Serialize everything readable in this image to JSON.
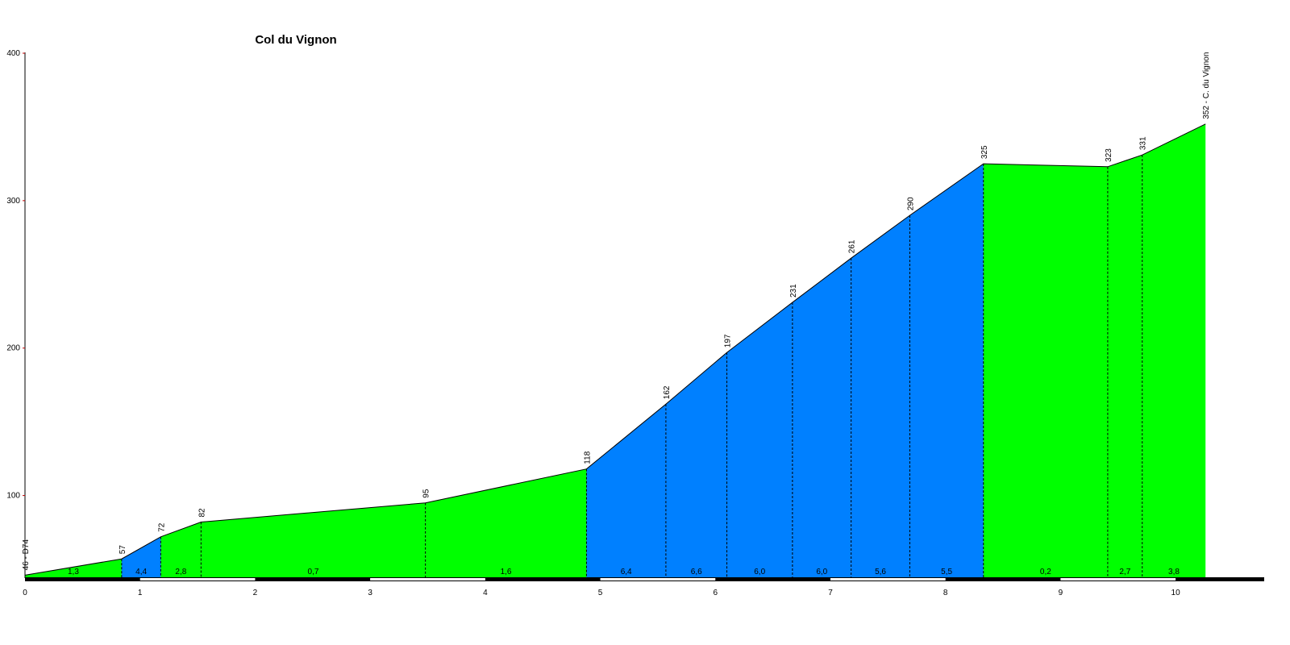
{
  "chart_data": {
    "type": "profile",
    "title": "Col du Vignon",
    "x": [
      0,
      0.84,
      1.18,
      1.53,
      3.48,
      4.88,
      5.57,
      6.1,
      6.67,
      7.18,
      7.69,
      8.33,
      9.41,
      9.71,
      10.26
    ],
    "values": [
      46,
      57,
      72,
      82,
      95,
      118,
      162,
      197,
      231,
      261,
      290,
      325,
      323,
      331,
      352
    ],
    "value_labels": [
      "46 - D74",
      "57",
      "72",
      "82",
      "95",
      "118",
      "162",
      "197",
      "231",
      "261",
      "290",
      "325",
      "323",
      "331",
      "352 - C. du Vignon"
    ],
    "gradients": [
      1.3,
      4.4,
      2.8,
      0.7,
      1.6,
      6.4,
      6.6,
      6.0,
      6.0,
      5.6,
      5.5,
      0.2,
      2.7,
      3.8
    ],
    "gradient_labels": [
      "1,3",
      "4,4",
      "2,8",
      "0,7",
      "1,6",
      "6,4",
      "6,6",
      "6,0",
      "6,0",
      "5,6",
      "5,5",
      "0,2",
      "2,7",
      "3,8"
    ],
    "segment_colors": [
      "#00ff00",
      "#0080ff",
      "#00ff00",
      "#00ff00",
      "#00ff00",
      "#0080ff",
      "#0080ff",
      "#0080ff",
      "#0080ff",
      "#0080ff",
      "#0080ff",
      "#00ff00",
      "#00ff00",
      "#00ff00"
    ],
    "xlim": [
      0,
      10.77
    ],
    "ylim": [
      44,
      400
    ],
    "xticks": [
      0,
      1,
      2,
      3,
      4,
      5,
      6,
      7,
      8,
      9,
      10
    ],
    "yticks": [
      100,
      200,
      300,
      400
    ]
  }
}
